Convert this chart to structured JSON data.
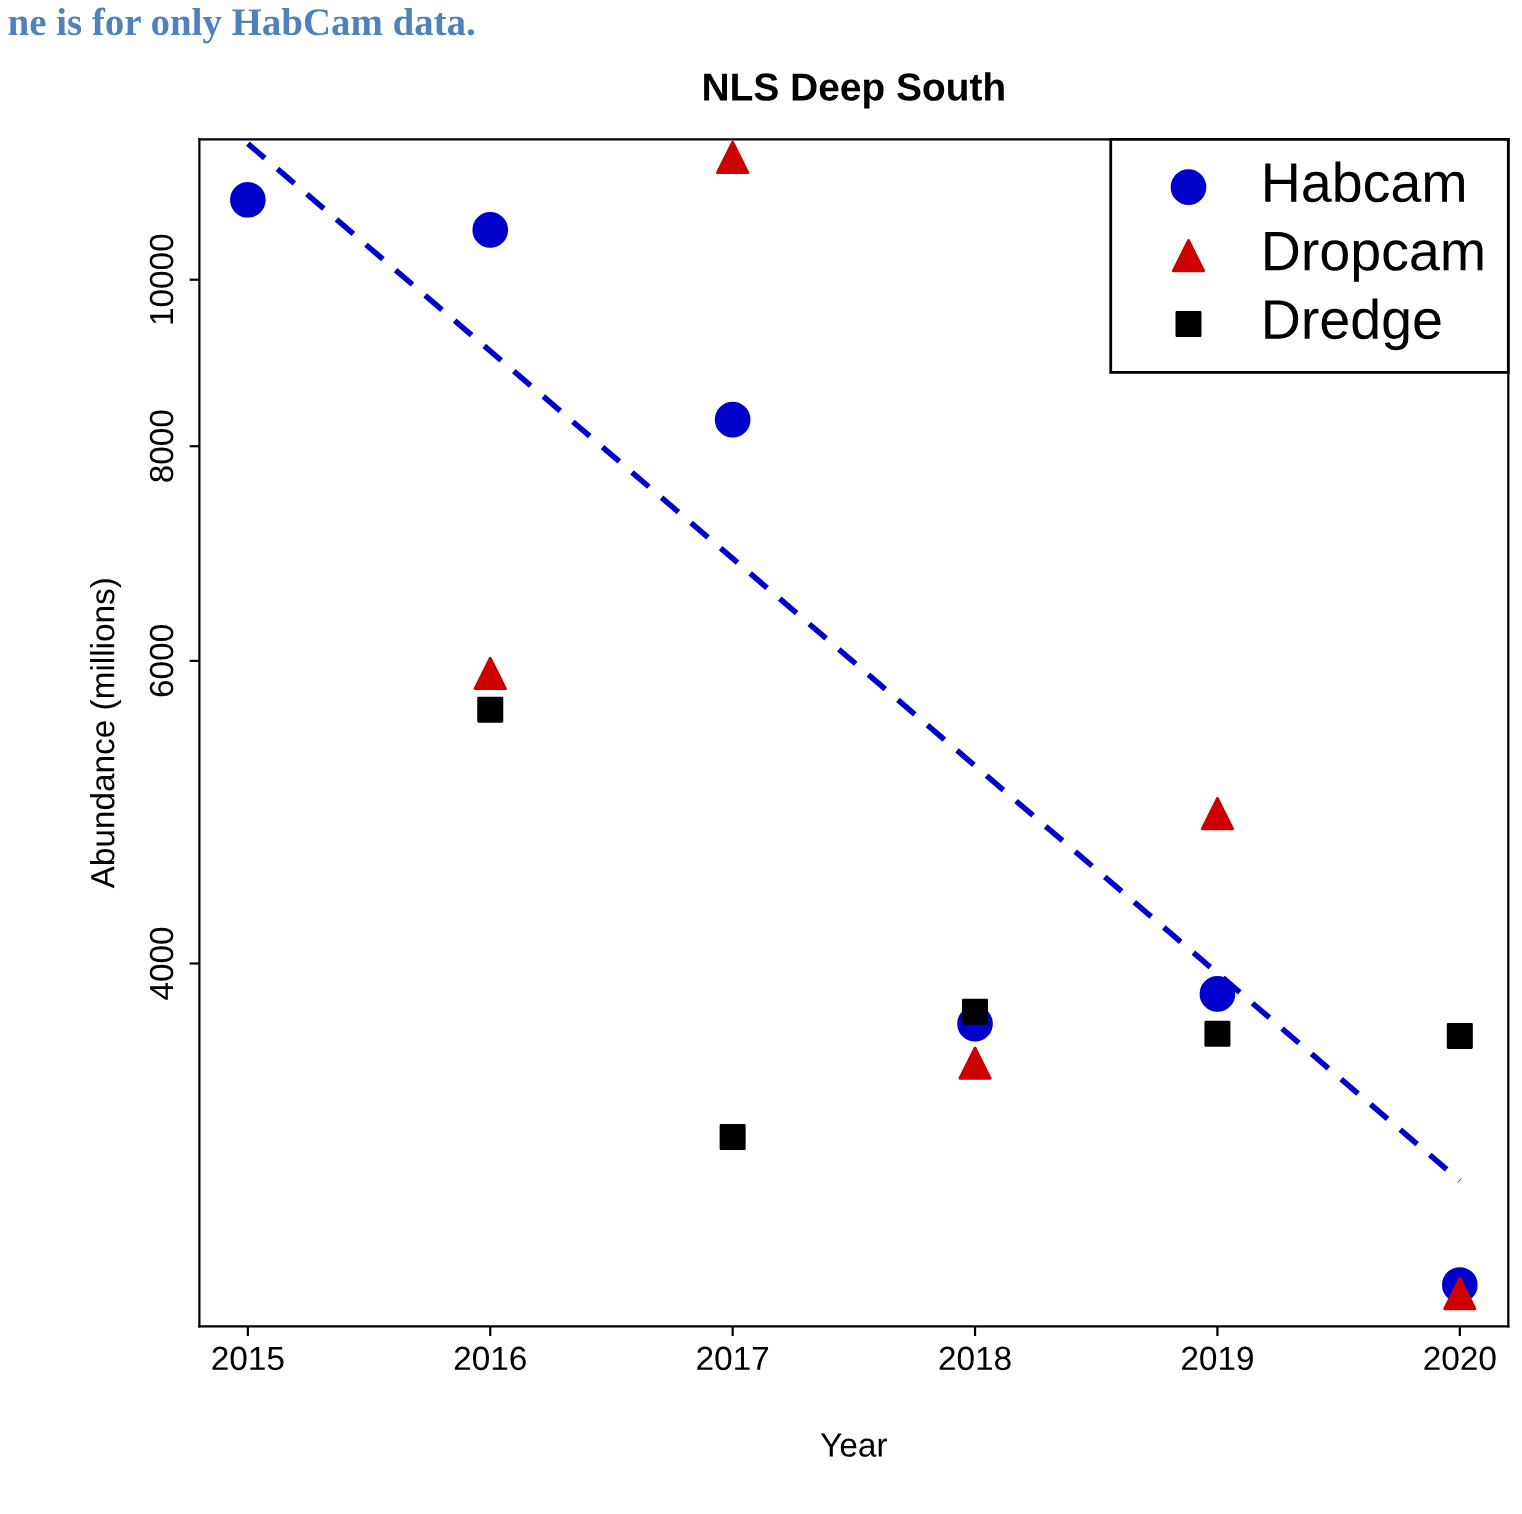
{
  "chart_data": {
    "type": "scatter",
    "title": "NLS Deep South",
    "xlabel": "Year",
    "ylabel": "Abundance (millions)",
    "annotations": [
      "ne is for only HabCam data."
    ],
    "log": "y",
    "xlim": [
      2014.8,
      2020.2
    ],
    "xticks": [
      2015,
      2016,
      2017,
      2018,
      2019,
      2020
    ],
    "ylim": [
      2460,
      12070
    ],
    "yticks": [
      4000,
      6000,
      8000,
      10000
    ],
    "grid": false,
    "legend": "top right",
    "series": [
      {
        "name": "Habcam",
        "color": "#0000cd",
        "marker": "circle",
        "x": [
          2015,
          2016,
          2017,
          2018,
          2019,
          2020
        ],
        "values": [
          11130,
          10690,
          8290,
          3690,
          3840,
          2600
        ]
      },
      {
        "name": "Dropcam",
        "color": "#cd0000",
        "marker": "triangle",
        "x": [
          2016,
          2017,
          2018,
          2019,
          2020
        ],
        "values": [
          5900,
          11780,
          3500,
          4890,
          2570
        ]
      },
      {
        "name": "Dredge",
        "color": "#000000",
        "marker": "square",
        "x": [
          2016,
          2017,
          2018,
          2019,
          2020
        ],
        "values": [
          5620,
          3170,
          3750,
          3640,
          3630
        ]
      },
      {
        "type": "line",
        "color": "#0000cd",
        "line_style": "dashed",
        "marker": "none",
        "x": [
          2015,
          2020
        ],
        "values": [
          12000,
          2990
        ]
      }
    ]
  }
}
